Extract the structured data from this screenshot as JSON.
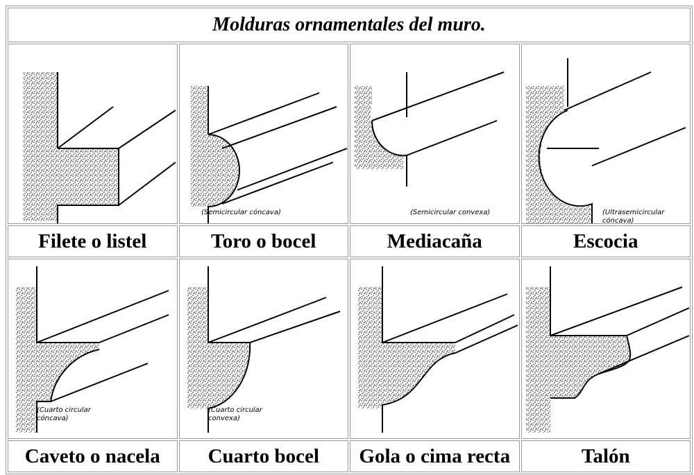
{
  "title": "Molduras ornamentales del muro.",
  "cells": [
    {
      "label": "Filete o listel"
    },
    {
      "label": "Toro o bocel",
      "note": [
        "(Semicircular cóncava)"
      ]
    },
    {
      "label": "Mediacaña",
      "note": [
        "(Semicircular convexa)"
      ]
    },
    {
      "label": "Escocia",
      "note": [
        "(Ultrasemicircular",
        "cóncava)"
      ]
    },
    {
      "label": "Caveto o nacela",
      "note": [
        "(Cuarto circular",
        "cóncava)"
      ]
    },
    {
      "label": "Cuarto bocel",
      "note": [
        "(Cuarto circular",
        "convexa)"
      ]
    },
    {
      "label": "Gola o cima recta"
    },
    {
      "label": "Talón"
    }
  ]
}
